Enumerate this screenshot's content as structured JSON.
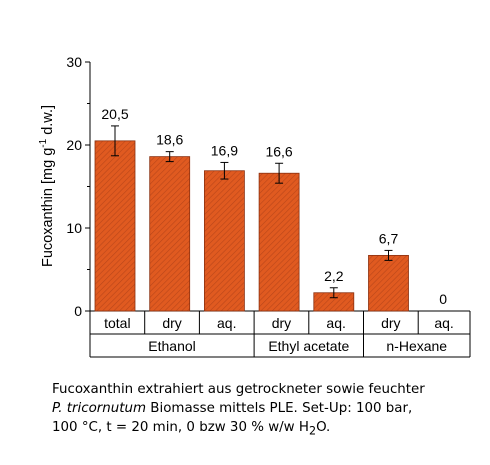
{
  "chart_data": {
    "type": "bar",
    "ylabel_main": "Fucoxanthin [mg g",
    "ylabel_sup": "-1",
    "ylabel_tail": " d.w.]",
    "ylim": [
      0,
      30
    ],
    "yticks": [
      "0",
      "10",
      "20",
      "30"
    ],
    "ytick_values": [
      0,
      10,
      20,
      30
    ],
    "categories": [
      "total",
      "dry",
      "aq.",
      "dry",
      "aq.",
      "dry",
      "aq."
    ],
    "values": [
      20.5,
      18.6,
      16.9,
      16.6,
      2.2,
      6.7,
      0
    ],
    "errors": [
      1.8,
      0.6,
      1.0,
      1.2,
      0.6,
      0.6,
      0
    ],
    "value_labels": [
      "20,5",
      "18,6",
      "16,9",
      "16,6",
      "2,2",
      "6,7",
      "0"
    ],
    "groups": [
      {
        "label": "Ethanol",
        "span": [
          0,
          3
        ]
      },
      {
        "label": "Ethyl acetate",
        "span": [
          3,
          5
        ]
      },
      {
        "label": "n-Hexane",
        "span": [
          5,
          7
        ]
      }
    ],
    "bar_color": "#e05a20",
    "grid": false
  },
  "caption": {
    "line1": "Fucoxanthin extrahiert aus getrockneter sowie feuchter",
    "line2_italic": "P. tricornutum",
    "line2_rest": " Biomasse mittels PLE. Set-Up: 100 bar,",
    "line3_main": "100 °C, t = 20 min, 0 bzw 30 % w/w H",
    "line3_sub": "2",
    "line3_end": "O."
  }
}
